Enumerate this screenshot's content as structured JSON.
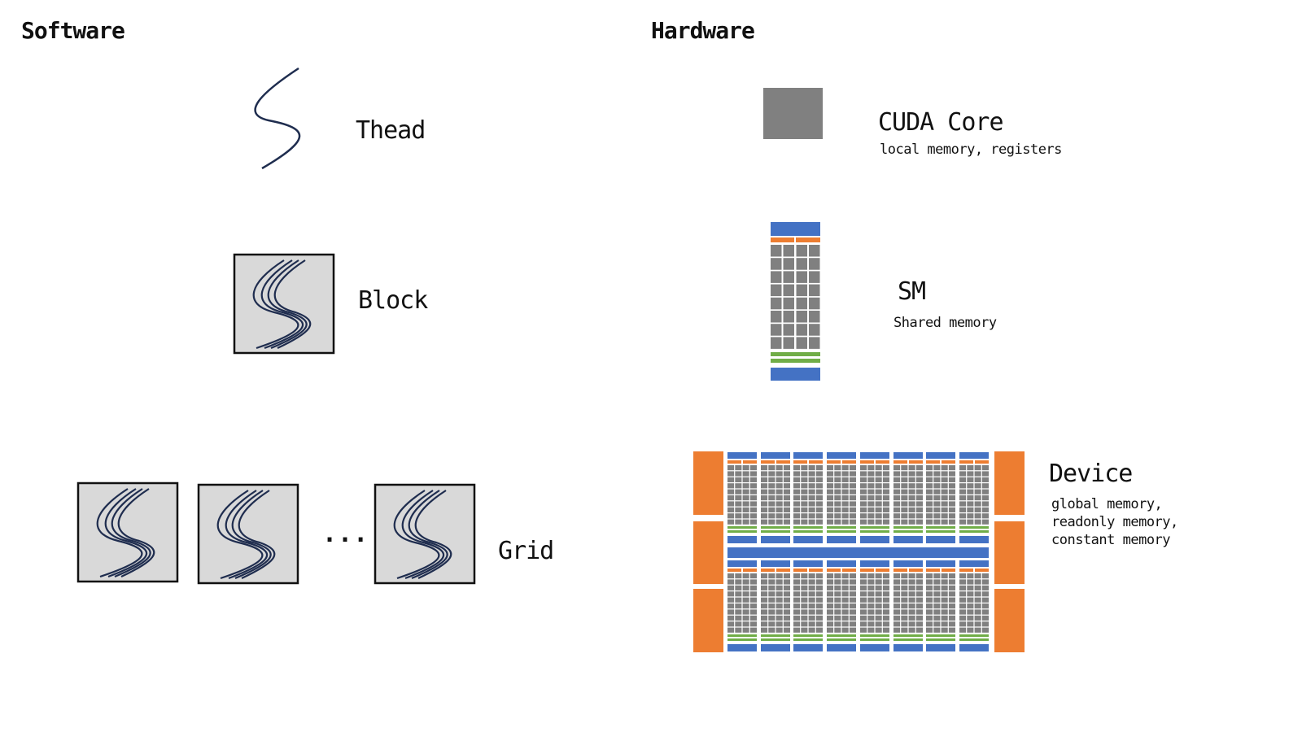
{
  "software": {
    "title": "Software",
    "thread_label": "Thead",
    "block_label": "Block",
    "grid_label": "Grid",
    "grid_ellipsis": "..."
  },
  "hardware": {
    "title": "Hardware",
    "core": {
      "label": "CUDA Core",
      "sublabel": "local memory, registers"
    },
    "sm": {
      "label": "SM",
      "sublabel": "Shared memory"
    },
    "device": {
      "label": "Device",
      "sublabel_lines": [
        "global memory,",
        "readonly memory,",
        "constant memory"
      ]
    }
  },
  "colors": {
    "thread_stroke": "#1f2d4f",
    "block_fill": "#d9d9d9",
    "core_gray": "#808080",
    "sm_blue": "#4472c4",
    "sm_orange": "#ed7d31",
    "sm_green": "#70ad47"
  }
}
